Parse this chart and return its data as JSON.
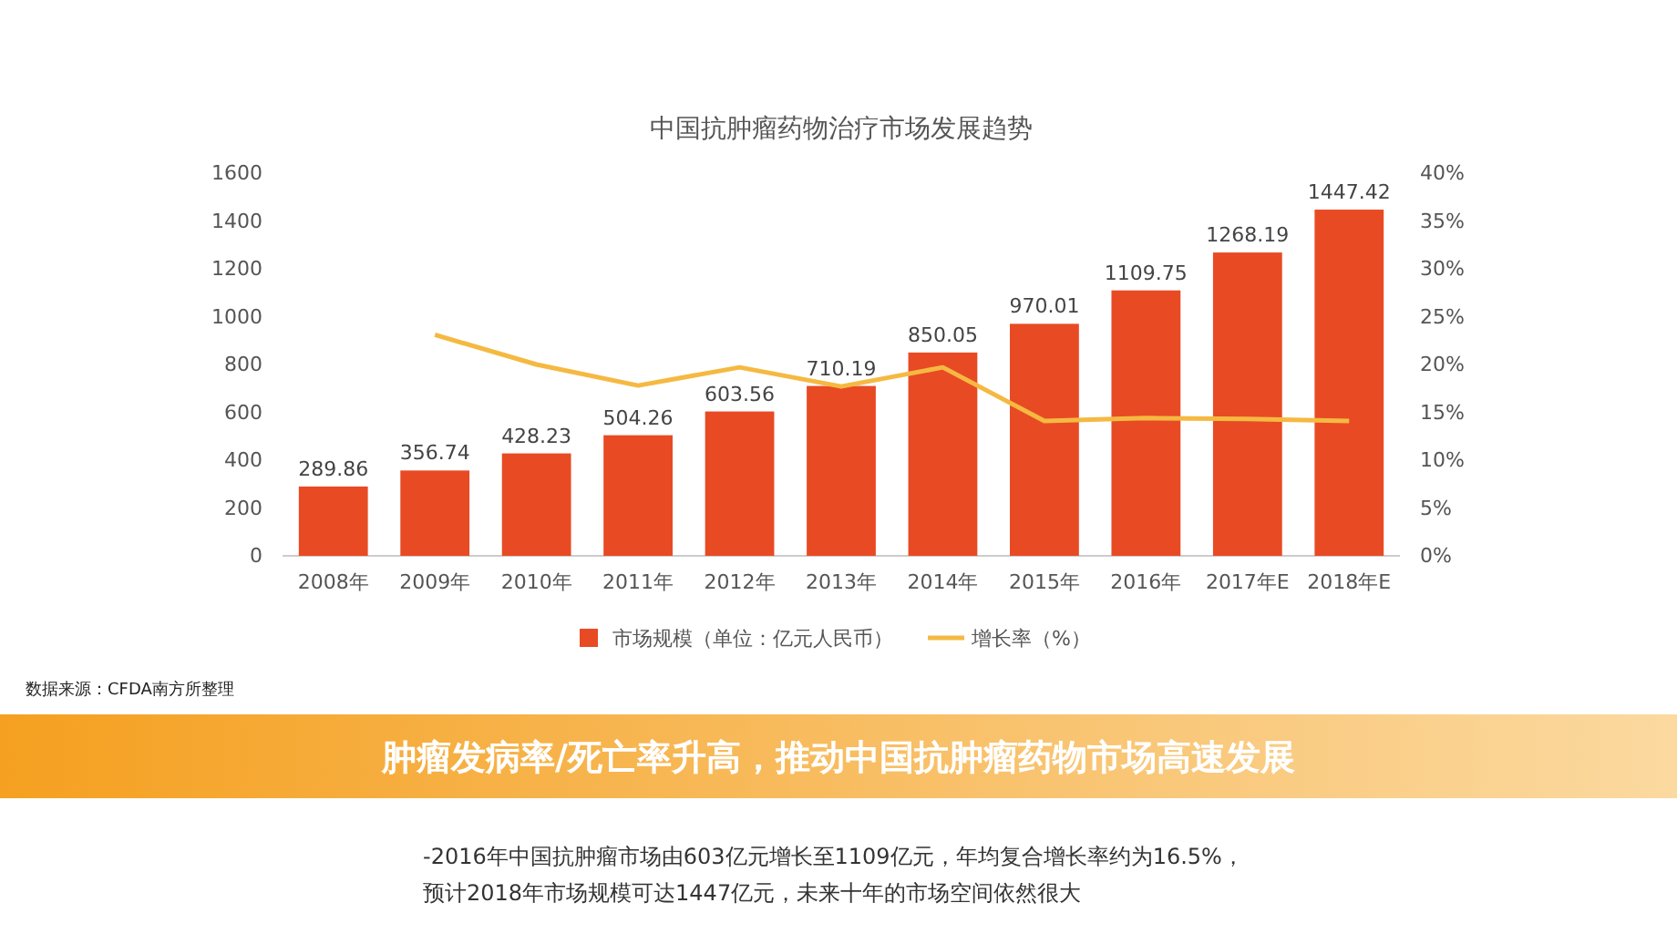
{
  "chart_data": {
    "type": "bar",
    "title": "中国抗肿瘤药物治疗市场发展趋势",
    "categories": [
      "2008年",
      "2009年",
      "2010年",
      "2011年",
      "2012年",
      "2013年",
      "2014年",
      "2015年",
      "2016年",
      "2017年E",
      "2018年E"
    ],
    "series": [
      {
        "name": "市场规模（单位：亿元人民币）",
        "color": "#e84a24",
        "values": [
          289.86,
          356.74,
          428.23,
          504.26,
          603.56,
          710.19,
          850.05,
          970.01,
          1109.75,
          1268.19,
          1447.42
        ],
        "value_labels": [
          "289.86",
          "356.74",
          "428.23",
          "504.26",
          "603.56",
          "710.19",
          "850.05",
          "970.01",
          "1109.75",
          "1268.19",
          "1447.42"
        ]
      },
      {
        "name": "增长率（%）",
        "type": "line",
        "axis": "y2",
        "color": "#f5b942",
        "values": [
          null,
          23.1,
          20.0,
          17.8,
          19.7,
          17.7,
          19.7,
          14.1,
          14.4,
          14.3,
          14.1
        ]
      }
    ],
    "ylim": [
      0,
      1600
    ],
    "yticks": [
      0,
      200,
      400,
      600,
      800,
      1000,
      1200,
      1400,
      1600
    ],
    "y2lim": [
      0,
      40
    ],
    "y2ticks": [
      {
        "value": 0,
        "label": "0%"
      },
      {
        "value": 5,
        "label": "5%"
      },
      {
        "value": 10,
        "label": "10%"
      },
      {
        "value": 15,
        "label": "15%"
      },
      {
        "value": 20,
        "label": "20%"
      },
      {
        "value": 25,
        "label": "25%"
      },
      {
        "value": 30,
        "label": "30%"
      },
      {
        "value": 35,
        "label": "35%"
      },
      {
        "value": 40,
        "label": "40%"
      }
    ],
    "legend": "bottom",
    "marker": "none",
    "line_style": "solid",
    "annotations": [
      "数据来源：CFDA南方所整理",
      "肿瘤发病率/死亡率升高，推动中国抗肿瘤药物市场高速发展",
      "-2016年中国抗肿瘤市场由603亿元增长至1109亿元，年均复合增长率约为16.5%，",
      "预计2018年市场规模可达1447亿元，未来十年的市场空间依然很大"
    ]
  }
}
